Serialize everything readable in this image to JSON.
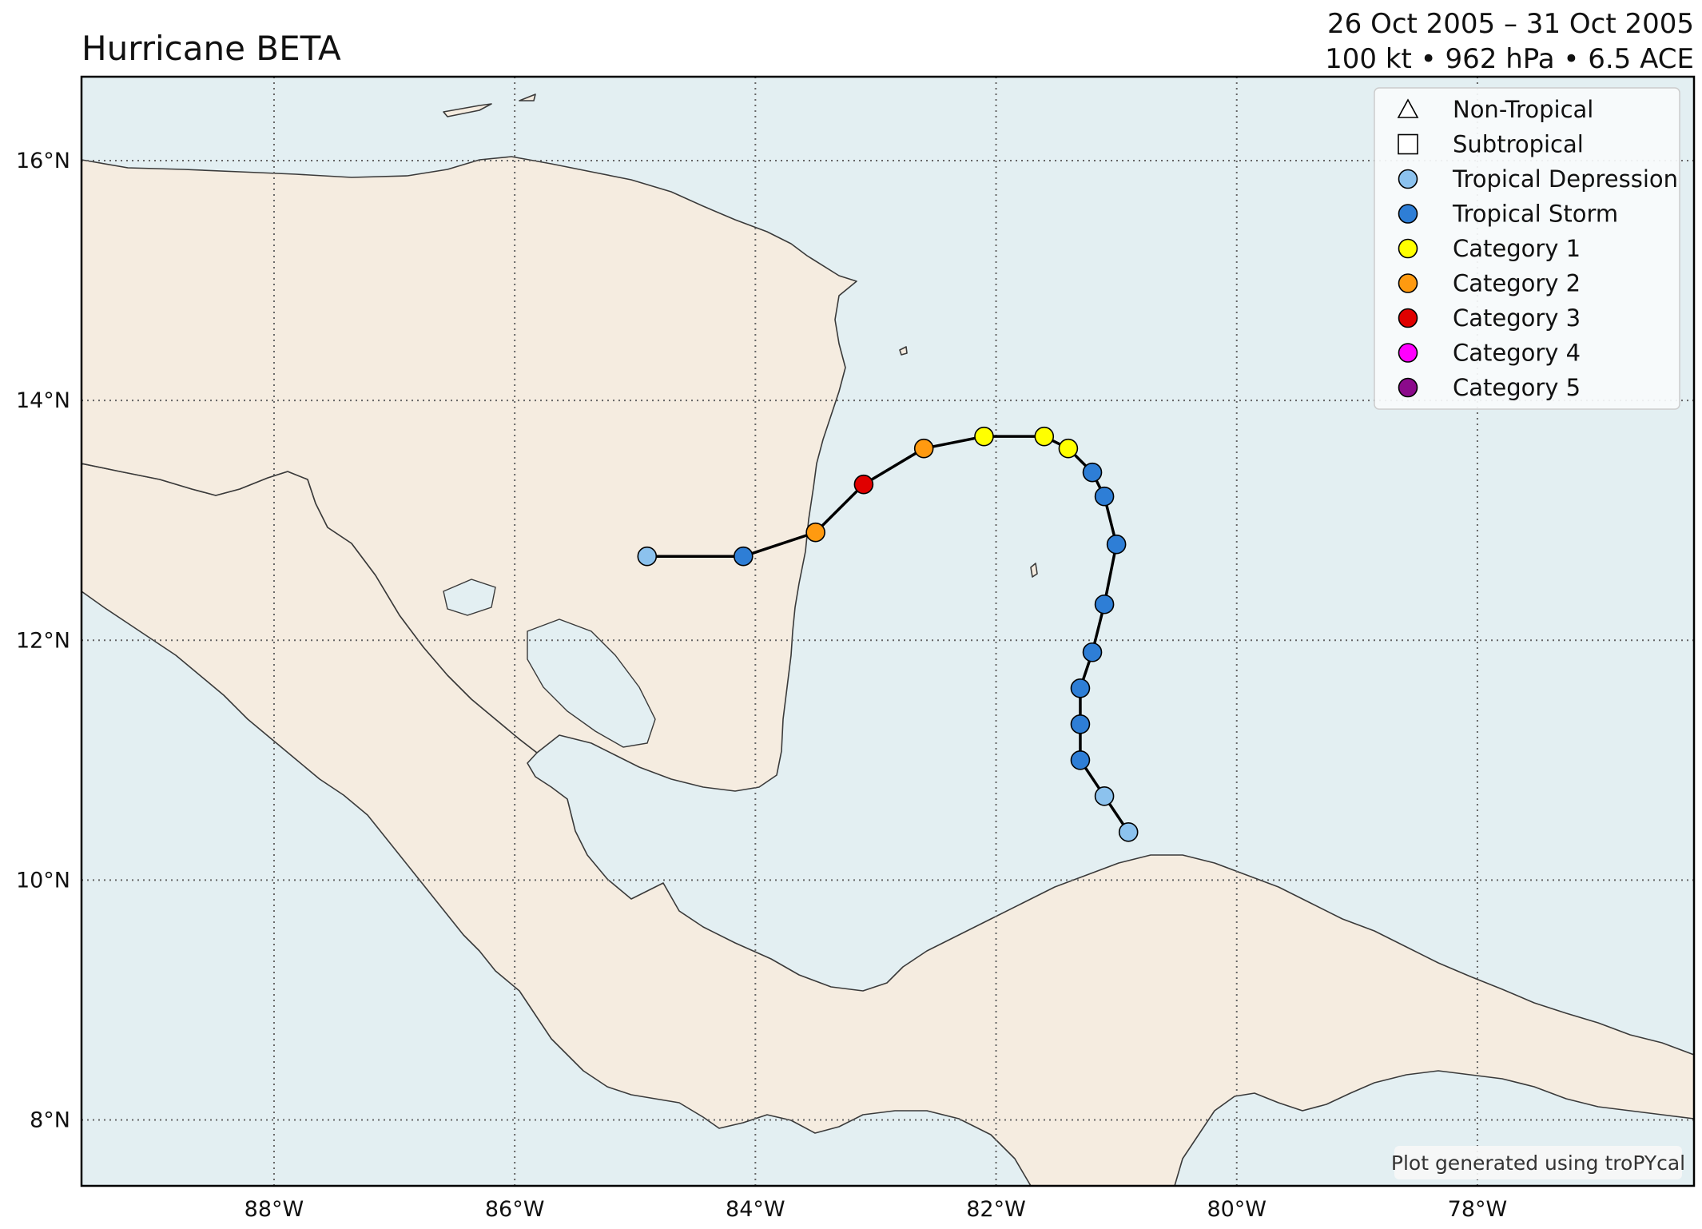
{
  "title": "Hurricane BETA",
  "subtitle": {
    "dates": "26 Oct 2005 – 31 Oct 2005",
    "stats": "100 kt • 962 hPa • 6.5 ACE"
  },
  "colors": {
    "ocean": "#e3eff2",
    "land": "#f5ece0",
    "coast": "#3a3a3a",
    "grid": "#666666",
    "track": "#000000"
  },
  "map": {
    "lon_range": [
      -89.6,
      -76.2
    ],
    "lat_range": [
      7.45,
      16.7
    ],
    "lon_ticks": [
      {
        "value": -88,
        "label": "88°W"
      },
      {
        "value": -86,
        "label": "86°W"
      },
      {
        "value": -84,
        "label": "84°W"
      },
      {
        "value": -82,
        "label": "82°W"
      },
      {
        "value": -80,
        "label": "80°W"
      },
      {
        "value": -78,
        "label": "78°W"
      }
    ],
    "lat_ticks": [
      {
        "value": 16,
        "label": "16°N"
      },
      {
        "value": 14,
        "label": "14°N"
      },
      {
        "value": 12,
        "label": "12°N"
      },
      {
        "value": 10,
        "label": "10°N"
      },
      {
        "value": 8,
        "label": "8°N"
      }
    ]
  },
  "legend": {
    "items": [
      {
        "label": "Non-Tropical",
        "shape": "triangle",
        "color": "#ffffff"
      },
      {
        "label": "Subtropical",
        "shape": "square",
        "color": "#ffffff"
      },
      {
        "label": "Tropical Depression",
        "shape": "circle",
        "color": "#8cc2ee"
      },
      {
        "label": "Tropical Storm",
        "shape": "circle",
        "color": "#2e7ed6"
      },
      {
        "label": "Category 1",
        "shape": "circle",
        "color": "#ffff00"
      },
      {
        "label": "Category 2",
        "shape": "circle",
        "color": "#ff9a10"
      },
      {
        "label": "Category 3",
        "shape": "circle",
        "color": "#e00000"
      },
      {
        "label": "Category 4",
        "shape": "circle",
        "color": "#ff00ff"
      },
      {
        "label": "Category 5",
        "shape": "circle",
        "color": "#8b0a8b"
      }
    ]
  },
  "track": [
    {
      "lon": -80.9,
      "lat": 10.4,
      "category": "Tropical Depression"
    },
    {
      "lon": -81.1,
      "lat": 10.7,
      "category": "Tropical Depression"
    },
    {
      "lon": -81.3,
      "lat": 11.0,
      "category": "Tropical Storm"
    },
    {
      "lon": -81.3,
      "lat": 11.3,
      "category": "Tropical Storm"
    },
    {
      "lon": -81.3,
      "lat": 11.6,
      "category": "Tropical Storm"
    },
    {
      "lon": -81.2,
      "lat": 11.9,
      "category": "Tropical Storm"
    },
    {
      "lon": -81.1,
      "lat": 12.3,
      "category": "Tropical Storm"
    },
    {
      "lon": -81.0,
      "lat": 12.8,
      "category": "Tropical Storm"
    },
    {
      "lon": -81.1,
      "lat": 13.2,
      "category": "Tropical Storm"
    },
    {
      "lon": -81.2,
      "lat": 13.4,
      "category": "Tropical Storm"
    },
    {
      "lon": -81.4,
      "lat": 13.6,
      "category": "Category 1"
    },
    {
      "lon": -81.6,
      "lat": 13.7,
      "category": "Category 1"
    },
    {
      "lon": -82.1,
      "lat": 13.7,
      "category": "Category 1"
    },
    {
      "lon": -82.6,
      "lat": 13.6,
      "category": "Category 2"
    },
    {
      "lon": -83.1,
      "lat": 13.3,
      "category": "Category 3"
    },
    {
      "lon": -83.5,
      "lat": 12.9,
      "category": "Category 2"
    },
    {
      "lon": -84.1,
      "lat": 12.7,
      "category": "Tropical Storm"
    },
    {
      "lon": -84.9,
      "lat": 12.7,
      "category": "Tropical Depression"
    }
  ],
  "credit": "Plot generated using troPYcal"
}
